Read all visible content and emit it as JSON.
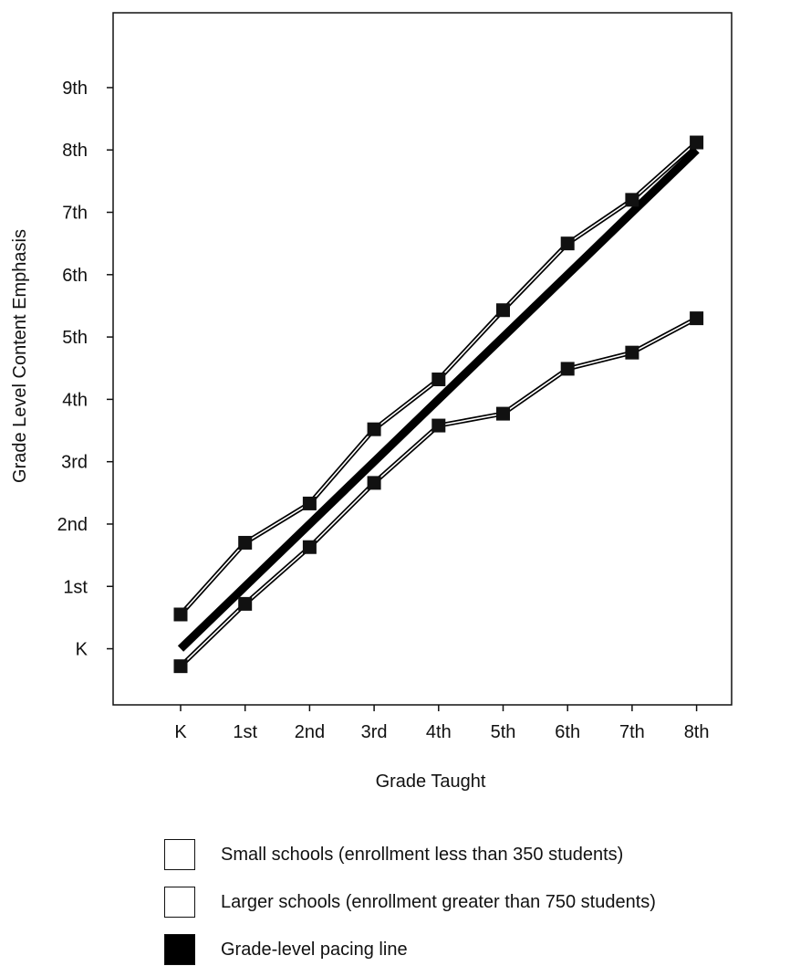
{
  "chart_data": {
    "type": "line",
    "title": "",
    "xlabel": "Grade Taught",
    "ylabel": "Grade Level Content Emphasis",
    "categories": [
      "K",
      "1st",
      "2nd",
      "3rd",
      "4th",
      "5th",
      "6th",
      "7th",
      "8th"
    ],
    "y_tick_labels": [
      "K",
      "1st",
      "2nd",
      "3rd",
      "4th",
      "5th",
      "6th",
      "7th",
      "8th",
      "9th"
    ],
    "ylim": [
      -0.9,
      10.2
    ],
    "grid": false,
    "legend_position": "bottom",
    "series": [
      {
        "name": "Small schools (enrollment less than 350 students)",
        "values": [
          0.55,
          1.7,
          2.33,
          3.52,
          4.32,
          5.43,
          6.5,
          7.2,
          8.12
        ],
        "marker": "square",
        "line_style": "double"
      },
      {
        "name": "Larger schools (enrollment greater than 750 students)",
        "values": [
          -0.28,
          0.72,
          1.63,
          2.66,
          3.58,
          3.77,
          4.49,
          4.75,
          5.3
        ],
        "marker": "square",
        "line_style": "double"
      },
      {
        "name": "Grade-level pacing line",
        "values": [
          0,
          1,
          2,
          3,
          4,
          5,
          6,
          7,
          8
        ],
        "line_style": "thick-solid"
      }
    ],
    "colors": {
      "line": "#000000",
      "axis": "#111111",
      "background": "#ffffff"
    }
  },
  "legend": {
    "items": [
      {
        "label": "Small schools (enrollment less than 350 students)",
        "swatch": "outline"
      },
      {
        "label": "Larger schools (enrollment greater than 750 students)",
        "swatch": "outline"
      },
      {
        "label": "Grade-level pacing line",
        "swatch": "filled"
      }
    ]
  }
}
